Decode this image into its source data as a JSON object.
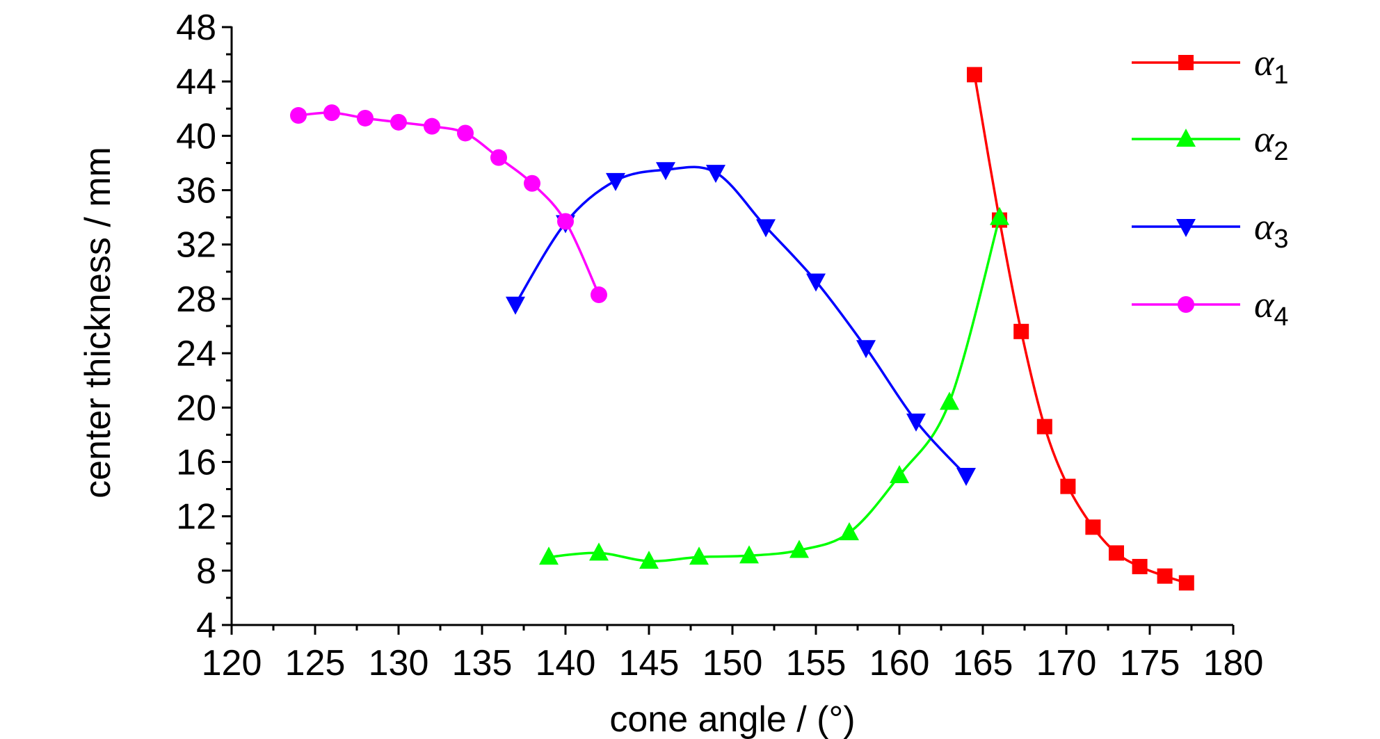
{
  "chart_data": {
    "type": "line",
    "title": "",
    "xlabel": "cone angle / (°)",
    "ylabel": "center thickness / mm",
    "xlim": [
      120,
      180
    ],
    "ylim": [
      4,
      48
    ],
    "xticks": [
      120,
      125,
      130,
      135,
      140,
      145,
      150,
      155,
      160,
      165,
      170,
      175,
      180
    ],
    "yticks": [
      4,
      8,
      12,
      16,
      20,
      24,
      28,
      32,
      36,
      40,
      44,
      48
    ],
    "grid": false,
    "legend_position": "top-right",
    "series": [
      {
        "name": "α1",
        "symbol": "α",
        "subscript": "1",
        "color": "#ff0000",
        "marker": "square",
        "x": [
          164.5,
          166.0,
          167.3,
          168.7,
          170.1,
          171.6,
          173.0,
          174.4,
          175.9,
          177.2
        ],
        "y": [
          44.5,
          33.8,
          25.6,
          18.6,
          14.2,
          11.2,
          9.3,
          8.3,
          7.6,
          7.1
        ]
      },
      {
        "name": "α2",
        "symbol": "α",
        "subscript": "2",
        "color": "#00ff00",
        "marker": "triangle-up",
        "x": [
          139,
          142,
          145,
          148,
          151,
          154,
          157,
          160,
          163,
          166
        ],
        "y": [
          9.0,
          9.3,
          8.7,
          9.0,
          9.1,
          9.5,
          10.8,
          15.0,
          20.4,
          34.0
        ]
      },
      {
        "name": "α3",
        "symbol": "α",
        "subscript": "3",
        "color": "#0000ff",
        "marker": "triangle-down",
        "x": [
          137,
          140,
          143,
          146,
          149,
          152,
          155,
          158,
          161,
          164
        ],
        "y": [
          27.6,
          33.6,
          36.7,
          37.5,
          37.3,
          33.3,
          29.3,
          24.4,
          19.0,
          15.0
        ]
      },
      {
        "name": "α4",
        "symbol": "α",
        "subscript": "4",
        "color": "#ff00ff",
        "marker": "circle",
        "x": [
          124,
          126,
          128,
          130,
          132,
          134,
          136,
          138,
          140,
          142
        ],
        "y": [
          41.5,
          41.7,
          41.3,
          41.0,
          40.7,
          40.2,
          38.4,
          36.5,
          33.7,
          28.3
        ]
      }
    ]
  }
}
